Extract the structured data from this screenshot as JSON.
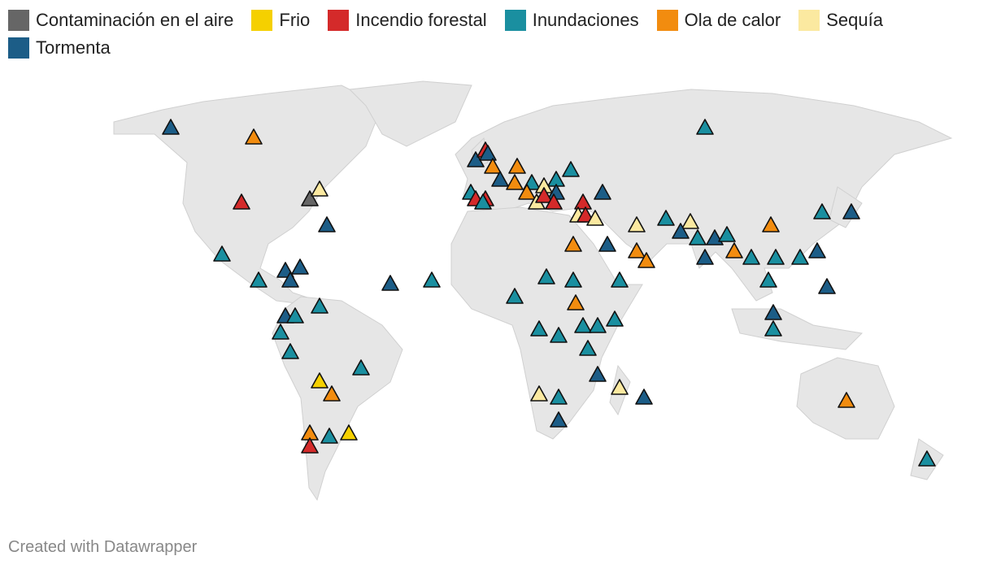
{
  "legend": [
    {
      "label": "Contaminación en el aire",
      "color": "#666666"
    },
    {
      "label": "Frio",
      "color": "#f5d000"
    },
    {
      "label": "Incendio forestal",
      "color": "#d42a2a"
    },
    {
      "label": "Inundaciones",
      "color": "#1a8fa0"
    },
    {
      "label": "Ola de calor",
      "color": "#f28c0f"
    },
    {
      "label": "Sequía",
      "color": "#fbe9a0"
    },
    {
      "label": "Tormenta",
      "color": "#1c5d87"
    }
  ],
  "markers": [
    {
      "event": "Tormenta",
      "lon": -130,
      "lat": 61
    },
    {
      "event": "Ola de calor",
      "lon": -96,
      "lat": 58
    },
    {
      "event": "Incendio forestal",
      "lon": -101,
      "lat": 38
    },
    {
      "event": "Contaminación en el aire",
      "lon": -73,
      "lat": 39
    },
    {
      "event": "Sequía",
      "lon": -69,
      "lat": 42
    },
    {
      "event": "Tormenta",
      "lon": -66,
      "lat": 31
    },
    {
      "event": "Inundaciones",
      "lon": -109,
      "lat": 22
    },
    {
      "event": "Tormenta",
      "lon": -83,
      "lat": 17
    },
    {
      "event": "Tormenta",
      "lon": -77,
      "lat": 18
    },
    {
      "event": "Tormenta",
      "lon": -81,
      "lat": 14
    },
    {
      "event": "Inundaciones",
      "lon": -94,
      "lat": 14
    },
    {
      "event": "Tormenta",
      "lon": -40,
      "lat": 13
    },
    {
      "event": "Inundaciones",
      "lon": -23,
      "lat": 14
    },
    {
      "event": "Inundaciones",
      "lon": -69,
      "lat": 6
    },
    {
      "event": "Tormenta",
      "lon": -83,
      "lat": 3
    },
    {
      "event": "Inundaciones",
      "lon": -79,
      "lat": 3
    },
    {
      "event": "Inundaciones",
      "lon": -85,
      "lat": -2
    },
    {
      "event": "Inundaciones",
      "lon": -81,
      "lat": -8
    },
    {
      "event": "Inundaciones",
      "lon": -52,
      "lat": -13
    },
    {
      "event": "Frio",
      "lon": -69,
      "lat": -17
    },
    {
      "event": "Ola de calor",
      "lon": -64,
      "lat": -21
    },
    {
      "event": "Ola de calor",
      "lon": -73,
      "lat": -33
    },
    {
      "event": "Inundaciones",
      "lon": -65,
      "lat": -34
    },
    {
      "event": "Frio",
      "lon": -57,
      "lat": -33
    },
    {
      "event": "Incendio forestal",
      "lon": -73,
      "lat": -37
    },
    {
      "event": "Tormenta",
      "lon": -5,
      "lat": 51
    },
    {
      "event": "Incendio forestal",
      "lon": -1,
      "lat": 54
    },
    {
      "event": "Tormenta",
      "lon": 0,
      "lat": 53
    },
    {
      "event": "Ola de calor",
      "lon": 2,
      "lat": 49
    },
    {
      "event": "Tormenta",
      "lon": 5,
      "lat": 45
    },
    {
      "event": "Ola de calor",
      "lon": 12,
      "lat": 49
    },
    {
      "event": "Ola de calor",
      "lon": 11,
      "lat": 44
    },
    {
      "event": "Inundaciones",
      "lon": 18,
      "lat": 44
    },
    {
      "event": "Inundaciones",
      "lon": 34,
      "lat": 48
    },
    {
      "event": "Inundaciones",
      "lon": 28,
      "lat": 45
    },
    {
      "event": "Tormenta",
      "lon": 28,
      "lat": 41
    },
    {
      "event": "Sequía",
      "lon": 23,
      "lat": 43
    },
    {
      "event": "Ola de calor",
      "lon": 16,
      "lat": 41
    },
    {
      "event": "Sequía",
      "lon": 20,
      "lat": 38
    },
    {
      "event": "Incendio forestal",
      "lon": 23,
      "lat": 40
    },
    {
      "event": "Incendio forestal",
      "lon": 27,
      "lat": 38
    },
    {
      "event": "Inundaciones",
      "lon": -7,
      "lat": 41
    },
    {
      "event": "Incendio forestal",
      "lon": -5,
      "lat": 39
    },
    {
      "event": "Incendio forestal",
      "lon": -1,
      "lat": 39
    },
    {
      "event": "Inundaciones",
      "lon": -2,
      "lat": 38
    },
    {
      "event": "Tormenta",
      "lon": 47,
      "lat": 41
    },
    {
      "event": "Incendio forestal",
      "lon": 39,
      "lat": 38
    },
    {
      "event": "Sequía",
      "lon": 37,
      "lat": 34
    },
    {
      "event": "Incendio forestal",
      "lon": 40,
      "lat": 34
    },
    {
      "event": "Sequía",
      "lon": 44,
      "lat": 33
    },
    {
      "event": "Ola de calor",
      "lon": 35,
      "lat": 25
    },
    {
      "event": "Tormenta",
      "lon": 49,
      "lat": 25
    },
    {
      "event": "Sequía",
      "lon": 61,
      "lat": 31
    },
    {
      "event": "Inundaciones",
      "lon": 73,
      "lat": 33
    },
    {
      "event": "Sequía",
      "lon": 83,
      "lat": 32
    },
    {
      "event": "Tormenta",
      "lon": 79,
      "lat": 29
    },
    {
      "event": "Inundaciones",
      "lon": 86,
      "lat": 27
    },
    {
      "event": "Tormenta",
      "lon": 93,
      "lat": 27
    },
    {
      "event": "Inundaciones",
      "lon": 98,
      "lat": 28
    },
    {
      "event": "Ola de calor",
      "lon": 101,
      "lat": 23
    },
    {
      "event": "Ola de calor",
      "lon": 116,
      "lat": 31
    },
    {
      "event": "Inundaciones",
      "lon": 108,
      "lat": 21
    },
    {
      "event": "Inundaciones",
      "lon": 118,
      "lat": 21
    },
    {
      "event": "Inundaciones",
      "lon": 128,
      "lat": 21
    },
    {
      "event": "Tormenta",
      "lon": 135,
      "lat": 23
    },
    {
      "event": "Inundaciones",
      "lon": 137,
      "lat": 35
    },
    {
      "event": "Tormenta",
      "lon": 149,
      "lat": 35
    },
    {
      "event": "Tormenta",
      "lon": 89,
      "lat": 21
    },
    {
      "event": "Ola de calor",
      "lon": 61,
      "lat": 23
    },
    {
      "event": "Ola de calor",
      "lon": 65,
      "lat": 20
    },
    {
      "event": "Inundaciones",
      "lon": 54,
      "lat": 14
    },
    {
      "event": "Inundaciones",
      "lon": 115,
      "lat": 14
    },
    {
      "event": "Tormenta",
      "lon": 139,
      "lat": 12
    },
    {
      "event": "Tormenta",
      "lon": 117,
      "lat": 4
    },
    {
      "event": "Inundaciones",
      "lon": 117,
      "lat": -1
    },
    {
      "event": "Inundaciones",
      "lon": 89,
      "lat": 61
    },
    {
      "event": "Inundaciones",
      "lon": 11,
      "lat": 9
    },
    {
      "event": "Inundaciones",
      "lon": 24,
      "lat": 15
    },
    {
      "event": "Inundaciones",
      "lon": 35,
      "lat": 14
    },
    {
      "event": "Ola de calor",
      "lon": 36,
      "lat": 7
    },
    {
      "event": "Inundaciones",
      "lon": 21,
      "lat": -1
    },
    {
      "event": "Inundaciones",
      "lon": 29,
      "lat": -3
    },
    {
      "event": "Inundaciones",
      "lon": 39,
      "lat": 0
    },
    {
      "event": "Inundaciones",
      "lon": 45,
      "lat": 0
    },
    {
      "event": "Inundaciones",
      "lon": 52,
      "lat": 2
    },
    {
      "event": "Inundaciones",
      "lon": 41,
      "lat": -7
    },
    {
      "event": "Tormenta",
      "lon": 45,
      "lat": -15
    },
    {
      "event": "Sequía",
      "lon": 54,
      "lat": -19
    },
    {
      "event": "Tormenta",
      "lon": 64,
      "lat": -22
    },
    {
      "event": "Sequía",
      "lon": 21,
      "lat": -21
    },
    {
      "event": "Inundaciones",
      "lon": 29,
      "lat": -22
    },
    {
      "event": "Tormenta",
      "lon": 29,
      "lat": -29
    },
    {
      "event": "Ola de calor",
      "lon": 147,
      "lat": -23
    },
    {
      "event": "Inundaciones",
      "lon": 180,
      "lat": -41
    }
  ],
  "footer": "Created with Datawrapper"
}
